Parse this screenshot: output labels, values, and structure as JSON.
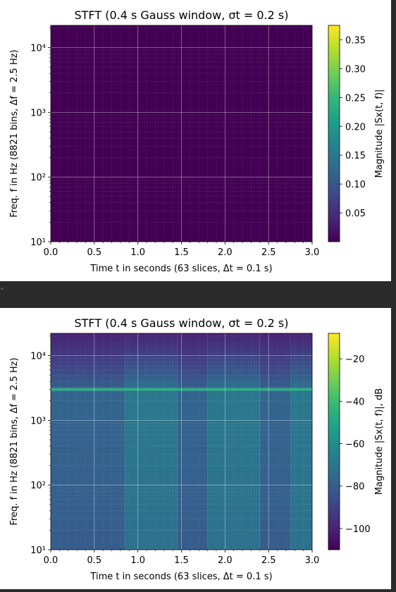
{
  "chart_data": [
    {
      "type": "heatmap",
      "title": "STFT (0.4 s Gauss window, σt = 0.2 s)",
      "xlabel": "Time t in seconds (63 slices, Δt = 0.1 s)",
      "ylabel": "Freq. f in Hz (8821 bins, Δf = 2.5 Hz)",
      "xlim": [
        0.0,
        3.0
      ],
      "ylim": [
        10,
        22050
      ],
      "yscale": "log",
      "x_ticks": [
        "0.0",
        "0.5",
        "1.0",
        "1.5",
        "2.0",
        "2.5",
        "3.0"
      ],
      "y_ticks": [
        "10¹",
        "10²",
        "10³",
        "10⁴"
      ],
      "grid": true,
      "colormap": "viridis",
      "colorbar": {
        "label": "Magnitude |Sx(t, f)|",
        "range": [
          0.0,
          0.375
        ],
        "ticks": [
          0.05,
          0.1,
          0.15,
          0.2,
          0.25,
          0.3,
          0.35
        ],
        "tick_labels": [
          "0.05",
          "0.10",
          "0.15",
          "0.20",
          "0.25",
          "0.30",
          "0.35"
        ]
      },
      "background_value": 0.0,
      "band_segments": []
    },
    {
      "type": "heatmap",
      "title": "STFT (0.4 s Gauss window, σt = 0.2 s)",
      "xlabel": "Time t in seconds (63 slices, Δt = 0.1 s)",
      "ylabel": "Freq. f in Hz (8821 bins, Δf = 2.5 Hz)",
      "xlim": [
        0.0,
        3.0
      ],
      "ylim": [
        10,
        22050
      ],
      "yscale": "log",
      "x_ticks": [
        "0.0",
        "0.5",
        "1.0",
        "1.5",
        "2.0",
        "2.5",
        "3.0"
      ],
      "y_ticks": [
        "10¹",
        "10²",
        "10³",
        "10⁴"
      ],
      "grid": true,
      "colormap": "viridis",
      "colorbar": {
        "label": "Magnitude |Sx(t, f)|, dB",
        "range": [
          -110,
          -8
        ],
        "ticks": [
          -100,
          -80,
          -60,
          -40,
          -20
        ],
        "tick_labels": [
          "−100",
          "−80",
          "−60",
          "−40",
          "−20"
        ]
      },
      "tone_frequency_hz": 3000,
      "tone_level_db": -43,
      "segments": [
        {
          "t_start": 0.0,
          "t_end": 0.85,
          "level_db": -80
        },
        {
          "t_start": 0.85,
          "t_end": 1.45,
          "level_db": -72
        },
        {
          "t_start": 1.45,
          "t_end": 1.8,
          "level_db": -80
        },
        {
          "t_start": 1.8,
          "t_end": 2.4,
          "level_db": -72
        },
        {
          "t_start": 2.4,
          "t_end": 2.75,
          "level_db": -80
        },
        {
          "t_start": 2.75,
          "t_end": 3.0,
          "level_db": -72
        }
      ],
      "high_freq_fade_db": -100
    }
  ]
}
